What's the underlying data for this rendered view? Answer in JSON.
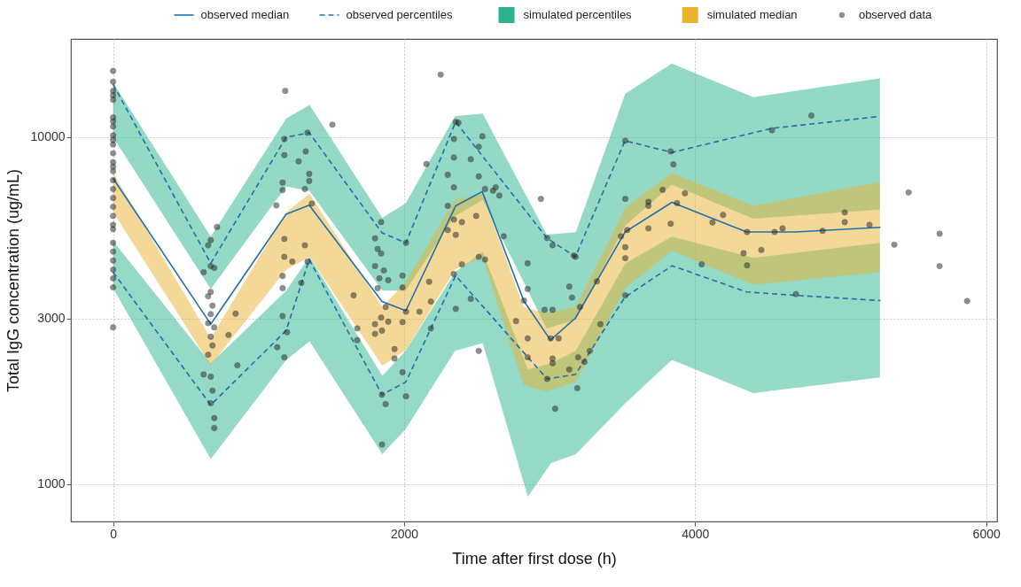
{
  "chart_data": {
    "type": "line",
    "xlabel": "Time after first dose (h)",
    "ylabel": "Total IgG concentration (ug/mL)",
    "xlim": [
      -290,
      6075
    ],
    "ylim": [
      780,
      19200
    ],
    "xticks": [
      0,
      2000,
      4000,
      6000
    ],
    "yticks": [
      1000,
      3000,
      10000
    ],
    "log": "y",
    "grid": true,
    "legend": "top",
    "series": [
      {
        "name": "observed median",
        "color": "#1f6fae",
        "line_style": "solid",
        "x": [
          0,
          671,
          1189,
          1348,
          1848,
          2012,
          2354,
          2537,
          2823,
          3006,
          3177,
          3518,
          3841,
          4354,
          4689,
          5274
        ],
        "values": [
          7610,
          2890,
          6000,
          6370,
          3360,
          3160,
          6340,
          6970,
          3370,
          2600,
          3010,
          5330,
          6490,
          5330,
          5330,
          5500
        ]
      },
      {
        "name": "observed percentiles",
        "color": "#1f6fae",
        "line_style": "dashed",
        "x": [
          0,
          671,
          1189,
          1348,
          1848,
          2012,
          2354,
          2982,
          3177,
          3518,
          3841,
          4524,
          5250
        ],
        "values": [
          14200,
          4330,
          10000,
          10300,
          5300,
          4960,
          11070,
          5120,
          4520,
          9770,
          9040,
          10600,
          11460
        ]
      },
      {
        "color": "#1f6fae",
        "line_style": "dashed",
        "x": [
          0,
          671,
          1189,
          1348,
          1848,
          2012,
          2354,
          2982,
          3177,
          3518,
          3841,
          4354,
          4689,
          5274
        ],
        "values": [
          4080,
          1690,
          2770,
          4440,
          1810,
          1970,
          3990,
          2010,
          2070,
          3460,
          4260,
          3580,
          3500,
          3380
        ]
      },
      {
        "type": "area",
        "name": "simulated percentiles",
        "color": "#2ab38e",
        "x": [
          0,
          671,
          1190,
          1350,
          1850,
          2010,
          2350,
          2540,
          2980,
          3180,
          3520,
          3840,
          4400,
          5270
        ],
        "values": [
          null,
          null,
          null,
          null,
          null,
          null,
          null,
          null,
          null,
          null,
          null,
          null,
          null,
          null
        ],
        "lower": [
          10000,
          3650,
          7220,
          7000,
          3610,
          3610,
          5930,
          6600,
          2810,
          2980,
          5560,
          7300,
          5820,
          6180
        ],
        "upper": [
          14370,
          5170,
          11330,
          12400,
          5860,
          6440,
          11500,
          11700,
          5240,
          5320,
          13350,
          16300,
          13040,
          14780
        ]
      },
      {
        "type": "area",
        "color": "#2bb48f",
        "x": [
          0,
          671,
          1190,
          1350,
          1850,
          2010,
          2350,
          2540,
          2850,
          3010,
          3180,
          3520,
          3840,
          4400,
          5270
        ],
        "values": [
          null,
          null,
          null,
          null,
          null,
          null,
          null,
          null,
          null,
          null,
          null,
          null,
          null,
          null,
          null
        ],
        "lower": [
          3670,
          1180,
          2280,
          2580,
          1220,
          1440,
          2420,
          2550,
          920,
          1150,
          1220,
          1710,
          2280,
          1830,
          2030
        ],
        "upper": [
          5020,
          2230,
          3610,
          4520,
          2050,
          2420,
          4080,
          4680,
          2140,
          2230,
          2420,
          4330,
          5170,
          4490,
          4960
        ]
      },
      {
        "type": "area",
        "name": "simulated median",
        "color": "#eab12f",
        "x": [
          0,
          671,
          1190,
          1350,
          1850,
          2010,
          2350,
          2540,
          2820,
          2980,
          3180,
          3520,
          3840,
          4400,
          5270
        ],
        "values": [
          null,
          null,
          null,
          null,
          null,
          null,
          null,
          null,
          null,
          null,
          null,
          null,
          null,
          null,
          null
        ],
        "lower": [
          6080,
          2200,
          4150,
          4520,
          2190,
          2430,
          4150,
          4520,
          1930,
          1850,
          1970,
          3670,
          4710,
          3760,
          4080
        ],
        "upper": [
          7880,
          2630,
          6080,
          6870,
          3240,
          3820,
          6600,
          6870,
          3240,
          3110,
          3240,
          6260,
          7880,
          6340,
          7430
        ]
      },
      {
        "type": "scatter",
        "name": "observed data",
        "color": "#333333",
        "marker": "circle",
        "x": [
          0,
          0,
          0,
          0,
          0,
          0,
          0,
          0,
          0,
          0,
          0,
          0,
          0,
          0,
          0,
          0,
          0,
          0,
          0,
          0,
          0,
          0,
          0,
          0,
          0,
          0,
          0,
          0,
          0,
          671,
          653,
          671,
          695,
          671,
          653,
          683,
          671,
          653,
          695,
          671,
          683,
          653,
          671,
          683,
          671,
          695,
          695,
          714,
          622,
          842,
          793,
          854,
          622,
          1183,
          1177,
          1177,
          1165,
          1165,
          1122,
          1177,
          1177,
          1232,
          1165,
          1165,
          1165,
          1196,
          1177,
          1128,
          1336,
          1275,
          1324,
          1348,
          1348,
          1318,
          1366,
          1318,
          1336,
          1293,
          1507,
          1653,
          1678,
          1678,
          2153,
          1842,
          1800,
          1818,
          1842,
          1800,
          1861,
          1830,
          1891,
          1818,
          1873,
          1842,
          1800,
          1848,
          1800,
          1891,
          1934,
          1934,
          1848,
          1873,
          1848,
          2013,
          1989,
          1989,
          2013,
          1989,
          1989,
          2013,
          2105,
          2172,
          2184,
          2184,
          2251,
          2300,
          2300,
          2300,
          2342,
          2342,
          2342,
          2355,
          2373,
          2342,
          2397,
          2355,
          2397,
          2342,
          2355,
          2458,
          2513,
          2538,
          2513,
          2556,
          2611,
          2629,
          2654,
          2495,
          2513,
          2556,
          2458,
          2513,
          2684,
          2849,
          2849,
          2824,
          2769,
          2849,
          2849,
          2940,
          2983,
          3020,
          2965,
          3020,
          3007,
          3062,
          3020,
          3020,
          2983,
          3038,
          3135,
          3154,
          3166,
          3178,
          3209,
          3135,
          3196,
          3239,
          3276,
          3190,
          3349,
          3325,
          3520,
          3520,
          3490,
          3533,
          3520,
          3520,
          3520,
          3679,
          3679,
          3679,
          3777,
          3832,
          3850,
          3832,
          3930,
          3875,
          4045,
          4119,
          4192,
          4333,
          4357,
          4455,
          4357,
          4528,
          4546,
          4601,
          4693,
          4799,
          4876,
          5028,
          5028,
          5198,
          5369,
          5467,
          5680,
          5680,
          5869
        ],
        "values": [
          15520,
          14450,
          13600,
          13200,
          12820,
          11400,
          11100,
          10740,
          10120,
          9820,
          9530,
          8990,
          8470,
          8220,
          7980,
          7520,
          7090,
          6680,
          6300,
          5930,
          5590,
          5430,
          4960,
          4680,
          4410,
          4150,
          3920,
          3690,
          2830,
          5050,
          4880,
          4250,
          4200,
          3580,
          3480,
          3270,
          3090,
          2910,
          2830,
          2660,
          2510,
          2360,
          2040,
          1860,
          1710,
          1550,
          1450,
          5510,
          4080,
          3100,
          2690,
          2200,
          2070,
          13600,
          9880,
          8880,
          7400,
          7040,
          6360,
          5090,
          4520,
          4380,
          3980,
          3670,
          3050,
          2740,
          2320,
          2480,
          10300,
          8520,
          9100,
          7840,
          7480,
          7090,
          6440,
          4880,
          4380,
          3800,
          10870,
          3500,
          2810,
          2600,
          8370,
          5690,
          5110,
          4760,
          4620,
          4250,
          4130,
          3920,
          3870,
          3670,
          3240,
          3020,
          2890,
          2770,
          2710,
          2940,
          2450,
          2300,
          1810,
          1700,
          1300,
          4960,
          3990,
          3690,
          3140,
          2930,
          2100,
          1790,
          3140,
          3830,
          3360,
          2810,
          15150,
          7790,
          6340,
          5400,
          9880,
          8740,
          7170,
          11070,
          11010,
          5790,
          5690,
          5230,
          4300,
          4030,
          3200,
          8640,
          9380,
          10060,
          7710,
          7090,
          7010,
          7170,
          6790,
          5930,
          4520,
          4440,
          3420,
          2420,
          5180,
          4330,
          3650,
          3380,
          2950,
          2630,
          2320,
          6640,
          5120,
          4880,
          3180,
          3180,
          2630,
          2630,
          2300,
          2230,
          2010,
          1650,
          3710,
          3450,
          4560,
          4520,
          3240,
          2140,
          2320,
          2250,
          2420,
          1890,
          2890,
          3840,
          9770,
          6640,
          5180,
          5400,
          4820,
          4480,
          3500,
          6510,
          6340,
          5460,
          7050,
          9100,
          8350,
          5630,
          6890,
          6460,
          4300,
          5680,
          5970,
          4630,
          4270,
          4730,
          5330,
          10470,
          5330,
          5460,
          3530,
          11540,
          5370,
          6070,
          5690,
          5590,
          4900,
          6930,
          5270,
          4250,
          3370
        ]
      }
    ]
  }
}
